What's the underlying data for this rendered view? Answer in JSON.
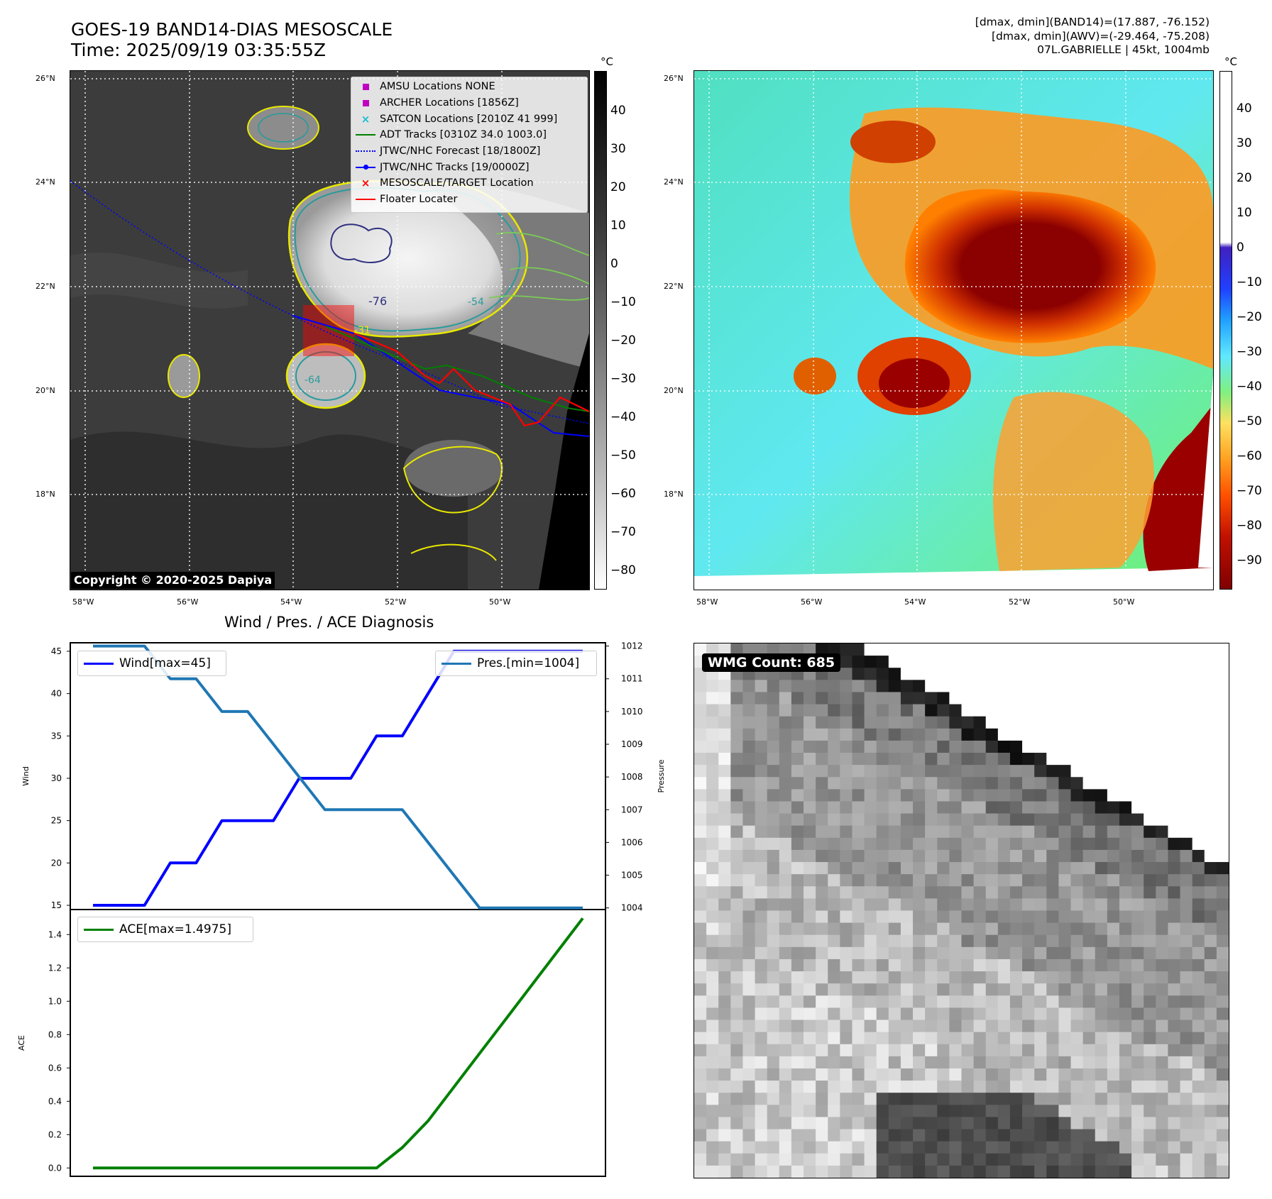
{
  "header": {
    "title_line1": "GOES-19 BAND14-DIAS MESOSCALE",
    "title_line2": "Time: 2025/09/19 03:35:55Z",
    "info_line1": "[dmax, dmin](BAND14)=(17.887, -76.152)",
    "info_line2": "[dmax, dmin](AWV)=(-29.464, -75.208)",
    "info_line3": "07L.GABRIELLE | 45kt, 1004mb"
  },
  "map_axes": {
    "lat_ticks": [
      "26°N",
      "24°N",
      "22°N",
      "20°N",
      "18°N"
    ],
    "lon_ticks": [
      "58°W",
      "56°W",
      "54°W",
      "52°W",
      "50°W"
    ]
  },
  "left_map": {
    "legend": [
      {
        "label": "AMSU Locations NONE",
        "color": "#c000c0",
        "symbol": "square"
      },
      {
        "label": "ARCHER Locations [1856Z]",
        "color": "#c000c0",
        "symbol": "square"
      },
      {
        "label": "SATCON Locations [2010Z 41 999]",
        "color": "#17becf",
        "symbol": "x"
      },
      {
        "label": "ADT Tracks [0310Z 34.0 1003.0]",
        "color": "#008000",
        "symbol": "line"
      },
      {
        "label": "JTWC/NHC Forecast [18/1800Z]",
        "color": "#0000ff",
        "symbol": "dotted"
      },
      {
        "label": "JTWC/NHC Tracks [19/0000Z]",
        "color": "#0000ff",
        "symbol": "line-dot"
      },
      {
        "label": "MESOSCALE/TARGET Location",
        "color": "#ff0000",
        "symbol": "x"
      },
      {
        "label": "Floater Locater",
        "color": "#ff0000",
        "symbol": "line"
      }
    ],
    "contour_labels": [
      "-76",
      "-64",
      "-54",
      "-31"
    ],
    "copyright": "Copyright © 2020-2025 Dapiya",
    "colorbar": {
      "unit": "°C",
      "ticks": [
        "40",
        "30",
        "20",
        "10",
        "0",
        "−10",
        "−20",
        "−30",
        "−40",
        "−50",
        "−60",
        "−70",
        "−80"
      ]
    }
  },
  "right_map": {
    "colorbar": {
      "unit": "°C",
      "ticks": [
        "40",
        "30",
        "20",
        "10",
        "0",
        "−10",
        "−20",
        "−30",
        "−40",
        "−50",
        "−60",
        "−70",
        "−80",
        "−90"
      ],
      "colors": [
        "#800000",
        "#c02000",
        "#ff6000",
        "#ffa020",
        "#ffe060",
        "#a0ff80",
        "#40e0ff",
        "#0060ff",
        "#4020c0",
        "#ffffff"
      ]
    }
  },
  "diagnosis": {
    "title": "Wind / Pres. / ACE Diagnosis",
    "wind_ylabel": "Wind",
    "pres_ylabel": "Pressure",
    "ace_ylabel": "ACE",
    "wind_legend": "Wind[max=45]",
    "pres_legend": "Pres.[min=1004]",
    "ace_legend": "ACE[max=1.4975]",
    "wind_ticks": [
      "45",
      "40",
      "35",
      "30",
      "25",
      "20",
      "15"
    ],
    "pres_ticks": [
      "1012",
      "1011",
      "1010",
      "1009",
      "1008",
      "1007",
      "1006",
      "1005",
      "1004"
    ],
    "ace_ticks": [
      "1.4",
      "1.2",
      "1.0",
      "0.8",
      "0.6",
      "0.4",
      "0.2",
      "0.0"
    ]
  },
  "chart_data": [
    {
      "type": "line",
      "title": "Wind / Pres. / ACE Diagnosis",
      "ylabel": "Wind",
      "y2label": "Pressure",
      "ylim": [
        14.5,
        46
      ],
      "y2lim": [
        1003.95,
        1012.1
      ],
      "x": [
        0,
        1,
        2,
        3,
        4,
        5,
        6,
        7,
        8,
        9,
        10,
        11,
        12,
        13,
        14,
        15,
        16,
        17,
        18,
        19
      ],
      "series": [
        {
          "name": "Wind[max=45]",
          "color": "#0000ff",
          "axis": "left",
          "values": [
            15,
            15,
            15,
            20,
            20,
            25,
            25,
            25,
            30,
            30,
            30,
            35,
            35,
            40,
            45,
            45,
            45,
            45,
            45,
            45
          ]
        },
        {
          "name": "Pres.[min=1004]",
          "color": "#1f77b4",
          "axis": "right",
          "values": [
            1012,
            1012,
            1012,
            1011,
            1011,
            1010,
            1010,
            1009,
            1008,
            1007,
            1007,
            1007,
            1007,
            1006,
            1005,
            1004,
            1004,
            1004,
            1004,
            1004
          ]
        }
      ]
    },
    {
      "type": "line",
      "ylabel": "ACE",
      "ylim": [
        -0.05,
        1.55
      ],
      "x": [
        0,
        1,
        2,
        3,
        4,
        5,
        6,
        7,
        8,
        9,
        10,
        11,
        12,
        13,
        14,
        15,
        16,
        17,
        18,
        19
      ],
      "series": [
        {
          "name": "ACE[max=1.4975]",
          "color": "#008000",
          "values": [
            0,
            0,
            0,
            0,
            0,
            0,
            0,
            0,
            0,
            0,
            0,
            0,
            0.1225,
            0.2825,
            0.485,
            0.6875,
            0.89,
            1.0925,
            1.295,
            1.4975
          ]
        }
      ]
    }
  ],
  "wmg": {
    "label": "WMG Count: 685"
  }
}
